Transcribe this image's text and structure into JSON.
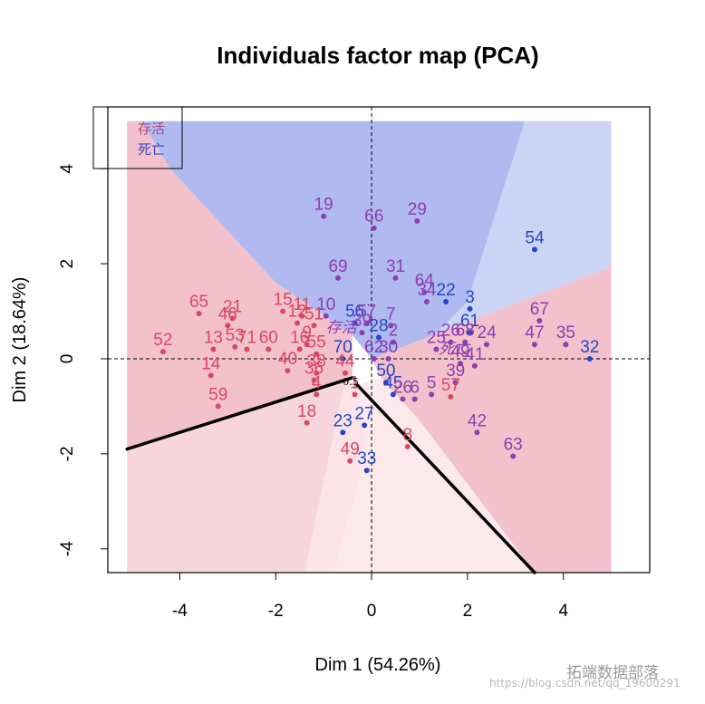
{
  "colors": {
    "survive": "#d94863",
    "death": "#2246c8",
    "mid": "#8d3fb0",
    "region_red": "#f2c1cb",
    "region_lightred": "#f7d5dc",
    "region_palered": "#fbe3e7",
    "region_blue": "#b0baf0",
    "region_lightblue": "#ccd4f5",
    "region_pale": "#fbe9ec"
  },
  "chart_data": {
    "type": "scatter",
    "title": "Individuals factor map (PCA)",
    "xlabel": "Dim 1 (54.26%)",
    "ylabel": "Dim 2 (18.64%)",
    "xlim": [
      -5.5,
      5.8
    ],
    "ylim": [
      -4.5,
      5.3
    ],
    "xticks": [
      -4,
      -2,
      0,
      2,
      4
    ],
    "yticks": [
      -4,
      -2,
      0,
      2,
      4
    ],
    "reference_lines": {
      "x": 0,
      "y": 0,
      "style": "dashed"
    },
    "legend": {
      "position": "top-left",
      "entries": [
        {
          "label": "存活",
          "color": "#b0487f"
        },
        {
          "label": "死亡",
          "color": "#3a48c8"
        }
      ]
    },
    "annotations": [
      {
        "text": "0.5",
        "x": -0.6,
        "y": -0.55
      },
      {
        "text": "存活",
        "x": -0.95,
        "y": 0.55,
        "color": "#8d3fb0",
        "italic": true
      },
      {
        "text": "死亡",
        "x": 1.4,
        "y": 0.1,
        "color": "#8d3fb0",
        "italic": true
      }
    ],
    "decision_boundary": [
      [
        [
          -5.1,
          -1.9
        ],
        [
          -0.4,
          -0.4
        ]
      ],
      [
        [
          -0.3,
          -0.55
        ],
        [
          3.4,
          -4.5
        ]
      ]
    ],
    "points": [
      {
        "label": "19",
        "x": -1.0,
        "y": 3.0,
        "group": "mid"
      },
      {
        "label": "66",
        "x": 0.05,
        "y": 2.75,
        "group": "mid"
      },
      {
        "label": "29",
        "x": 0.95,
        "y": 2.9,
        "group": "mid"
      },
      {
        "label": "54",
        "x": 3.4,
        "y": 2.3,
        "group": "death"
      },
      {
        "label": "69",
        "x": -0.7,
        "y": 1.7,
        "group": "mid"
      },
      {
        "label": "31",
        "x": 0.5,
        "y": 1.7,
        "group": "mid"
      },
      {
        "label": "64",
        "x": 1.1,
        "y": 1.4,
        "group": "mid"
      },
      {
        "label": "34",
        "x": 1.15,
        "y": 1.2,
        "group": "mid"
      },
      {
        "label": "22",
        "x": 1.55,
        "y": 1.2,
        "group": "death"
      },
      {
        "label": "3",
        "x": 2.05,
        "y": 1.05,
        "group": "death"
      },
      {
        "label": "67",
        "x": 3.5,
        "y": 0.8,
        "group": "mid"
      },
      {
        "label": "65",
        "x": -3.6,
        "y": 0.95,
        "group": "survive"
      },
      {
        "label": "21",
        "x": -2.9,
        "y": 0.85,
        "group": "survive"
      },
      {
        "label": "46",
        "x": -3.0,
        "y": 0.7,
        "group": "survive"
      },
      {
        "label": "15",
        "x": -1.85,
        "y": 1.0,
        "group": "survive"
      },
      {
        "label": "11",
        "x": -1.45,
        "y": 0.9,
        "group": "survive"
      },
      {
        "label": "10",
        "x": -0.95,
        "y": 0.9,
        "group": "mid"
      },
      {
        "label": "12",
        "x": -1.55,
        "y": 0.75,
        "group": "survive"
      },
      {
        "label": "51",
        "x": -1.2,
        "y": 0.7,
        "group": "survive"
      },
      {
        "label": "56",
        "x": -0.35,
        "y": 0.75,
        "group": "death"
      },
      {
        "label": "57",
        "x": -0.1,
        "y": 0.75,
        "group": "mid"
      },
      {
        "label": "7",
        "x": 0.4,
        "y": 0.7,
        "group": "mid"
      },
      {
        "label": "39",
        "x": -0.2,
        "y": 0.55,
        "group": "mid"
      },
      {
        "label": "28",
        "x": 0.15,
        "y": 0.45,
        "group": "death"
      },
      {
        "label": "61",
        "x": 2.05,
        "y": 0.55,
        "group": "death"
      },
      {
        "label": "26",
        "x": 1.65,
        "y": 0.35,
        "group": "mid"
      },
      {
        "label": "68",
        "x": 1.95,
        "y": 0.35,
        "group": "mid"
      },
      {
        "label": "24",
        "x": 2.4,
        "y": 0.3,
        "group": "mid"
      },
      {
        "label": "47",
        "x": 3.4,
        "y": 0.3,
        "group": "mid"
      },
      {
        "label": "35",
        "x": 4.05,
        "y": 0.3,
        "group": "mid"
      },
      {
        "label": "32",
        "x": 4.55,
        "y": 0.0,
        "group": "death"
      },
      {
        "label": "52",
        "x": -4.35,
        "y": 0.15,
        "group": "survive"
      },
      {
        "label": "13",
        "x": -3.3,
        "y": 0.2,
        "group": "survive"
      },
      {
        "label": "53",
        "x": -2.85,
        "y": 0.25,
        "group": "survive"
      },
      {
        "label": "71",
        "x": -2.6,
        "y": 0.2,
        "group": "survive"
      },
      {
        "label": "60",
        "x": -2.15,
        "y": 0.2,
        "group": "survive"
      },
      {
        "label": "16",
        "x": -1.5,
        "y": 0.2,
        "group": "survive"
      },
      {
        "label": "9",
        "x": -1.35,
        "y": 0.3,
        "group": "survive"
      },
      {
        "label": "55",
        "x": -1.15,
        "y": 0.1,
        "group": "survive"
      },
      {
        "label": "70",
        "x": -0.6,
        "y": 0.0,
        "group": "death"
      },
      {
        "label": "62",
        "x": 0.05,
        "y": 0.0,
        "group": "mid"
      },
      {
        "label": "30",
        "x": 0.35,
        "y": 0.0,
        "group": "mid"
      },
      {
        "label": "25",
        "x": 1.35,
        "y": 0.2,
        "group": "mid"
      },
      {
        "label": "49",
        "x": 1.85,
        "y": -0.1,
        "group": "mid"
      },
      {
        "label": "41",
        "x": 2.15,
        "y": -0.15,
        "group": "mid"
      },
      {
        "label": "14",
        "x": -3.35,
        "y": -0.35,
        "group": "survive"
      },
      {
        "label": "40",
        "x": -1.75,
        "y": -0.25,
        "group": "survive"
      },
      {
        "label": "38",
        "x": -1.15,
        "y": -0.3,
        "group": "survive"
      },
      {
        "label": "44",
        "x": -0.55,
        "y": -0.3,
        "group": "survive"
      },
      {
        "label": "36",
        "x": -1.2,
        "y": -0.45,
        "group": "survive"
      },
      {
        "label": "50",
        "x": 0.3,
        "y": -0.5,
        "group": "death"
      },
      {
        "label": "39",
        "x": 1.75,
        "y": -0.5,
        "group": "mid"
      },
      {
        "label": "59",
        "x": -3.2,
        "y": -1.0,
        "group": "survive"
      },
      {
        "label": "4",
        "x": -1.15,
        "y": -0.75,
        "group": "survive"
      },
      {
        "label": "1",
        "x": -0.35,
        "y": -0.75,
        "group": "survive"
      },
      {
        "label": "45",
        "x": 0.45,
        "y": -0.75,
        "group": "death"
      },
      {
        "label": "26",
        "x": 0.65,
        "y": -0.85,
        "group": "mid"
      },
      {
        "label": "6",
        "x": 0.9,
        "y": -0.85,
        "group": "mid"
      },
      {
        "label": "5",
        "x": 1.25,
        "y": -0.75,
        "group": "mid"
      },
      {
        "label": "57",
        "x": 1.65,
        "y": -0.8,
        "group": "survive"
      },
      {
        "label": "18",
        "x": -1.35,
        "y": -1.35,
        "group": "survive"
      },
      {
        "label": "23",
        "x": -0.6,
        "y": -1.55,
        "group": "death"
      },
      {
        "label": "27",
        "x": -0.15,
        "y": -1.4,
        "group": "death"
      },
      {
        "label": "42",
        "x": 2.2,
        "y": -1.55,
        "group": "mid"
      },
      {
        "label": "8",
        "x": 0.75,
        "y": -1.85,
        "group": "survive"
      },
      {
        "label": "49",
        "x": -0.45,
        "y": -2.15,
        "group": "survive"
      },
      {
        "label": "63",
        "x": 2.95,
        "y": -2.05,
        "group": "mid"
      },
      {
        "label": "33",
        "x": -0.1,
        "y": -2.35,
        "group": "death"
      },
      {
        "label": "2",
        "x": 0.45,
        "y": 0.35,
        "group": "mid"
      }
    ]
  },
  "watermark": {
    "url": "https://blog.csdn.net/qq_19600291",
    "brand": "拓端数据部落"
  }
}
